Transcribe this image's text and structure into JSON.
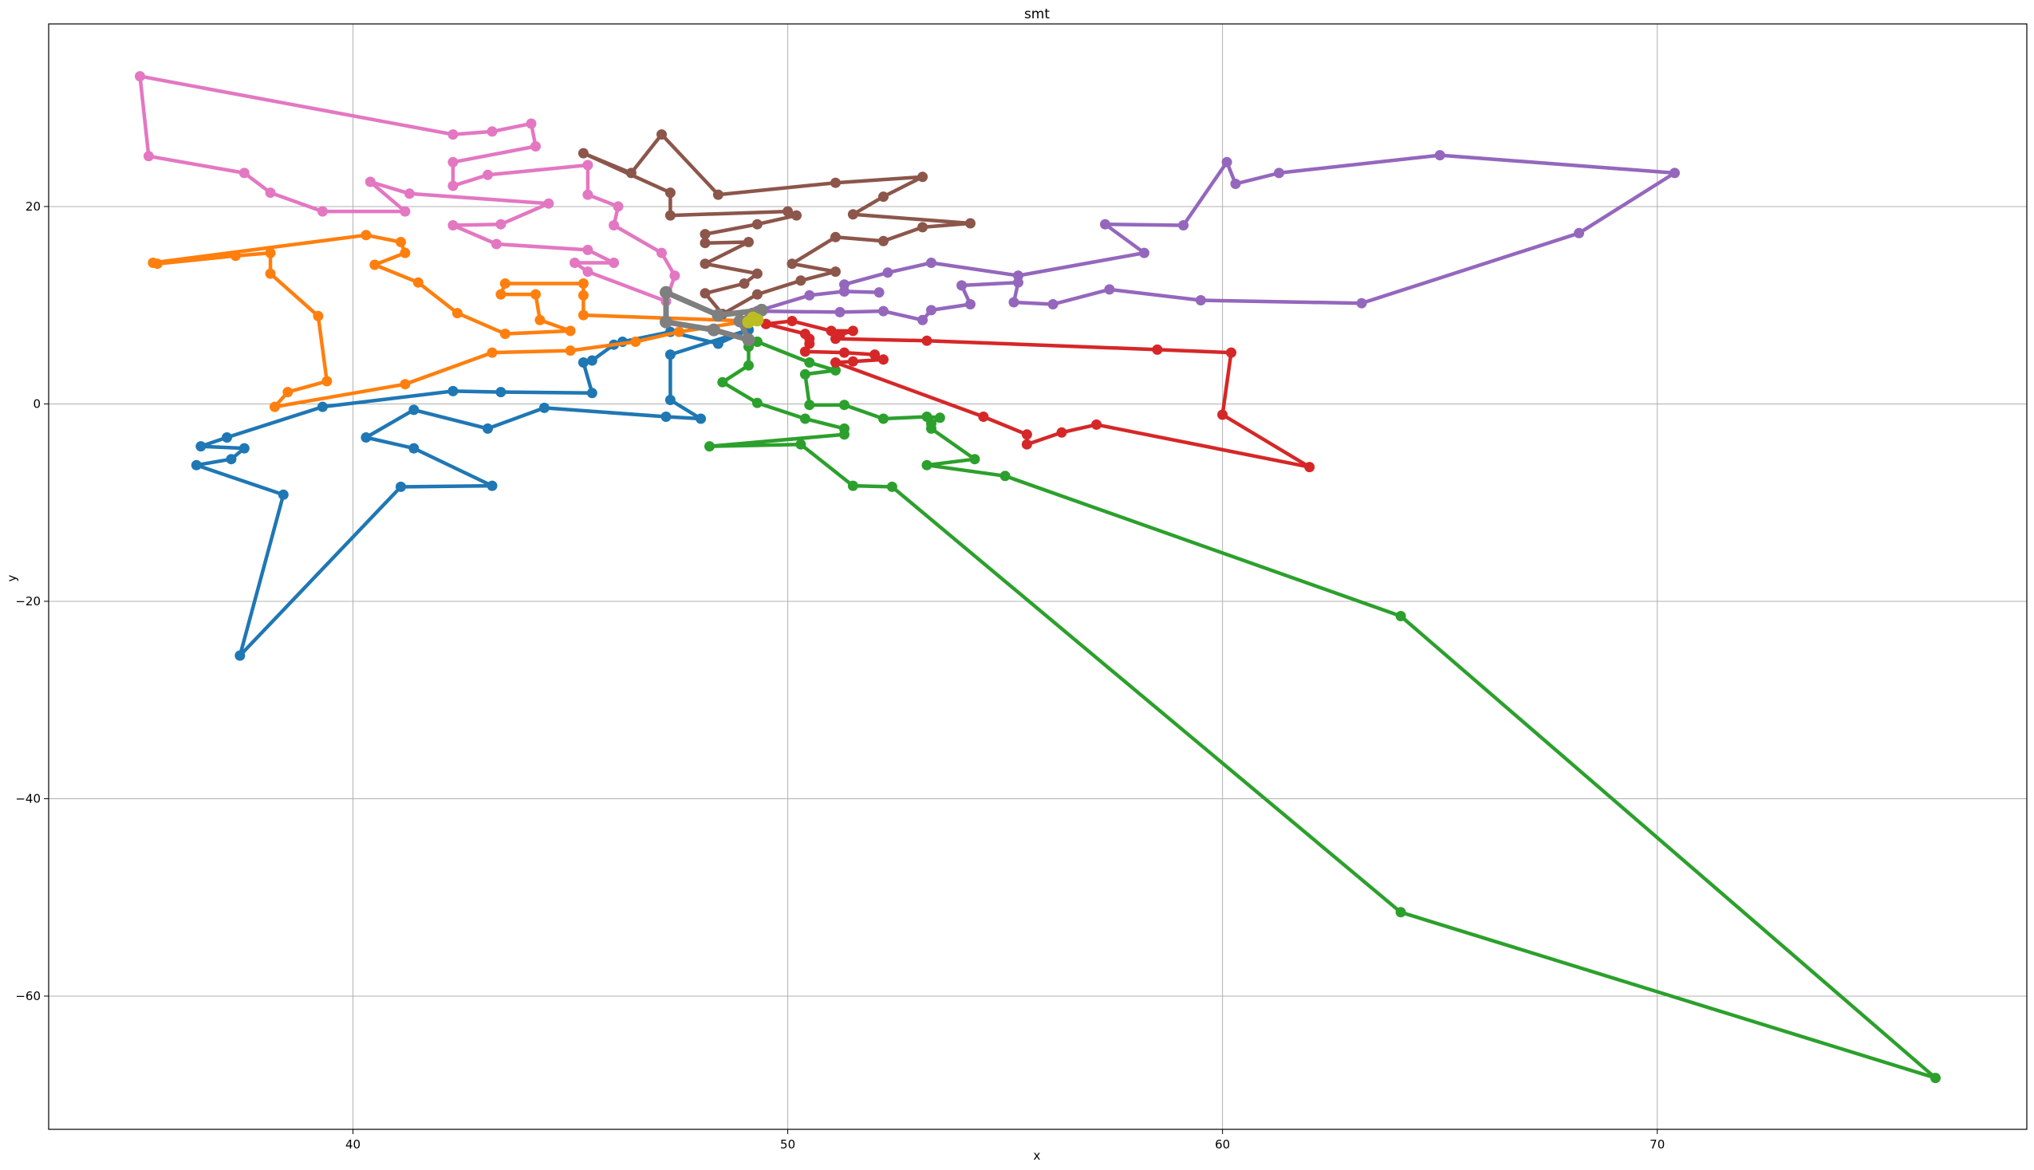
{
  "chart_data": {
    "type": "line",
    "title": "smt",
    "xlabel": "x",
    "ylabel": "y",
    "xlim": [
      33,
      78.5
    ],
    "ylim": [
      -73.5,
      38.5
    ],
    "xticks": [
      40,
      50,
      60,
      70
    ],
    "yticks": [
      -60,
      -40,
      -20,
      0,
      20
    ],
    "grid": true,
    "series": [
      {
        "color": "#1f77b4",
        "points": [
          [
            49.1,
            7.5
          ],
          [
            48.4,
            6.1
          ],
          [
            47.3,
            7.3
          ],
          [
            46.2,
            6.3
          ],
          [
            46,
            6
          ],
          [
            45.5,
            4.4
          ],
          [
            45.3,
            4.2
          ],
          [
            45.5,
            1.1
          ],
          [
            43.4,
            1.2
          ],
          [
            42.3,
            1.3
          ],
          [
            39.3,
            -0.3
          ],
          [
            37.1,
            -3.4
          ],
          [
            36.5,
            -4.3
          ],
          [
            37.5,
            -4.5
          ],
          [
            37.2,
            -5.6
          ],
          [
            36.4,
            -6.2
          ],
          [
            38.4,
            -9.2
          ],
          [
            37.4,
            -25.5
          ],
          [
            41.1,
            -8.4
          ],
          [
            43.2,
            -8.3
          ],
          [
            41.4,
            -4.5
          ],
          [
            40.3,
            -3.4
          ],
          [
            41.4,
            -0.6
          ],
          [
            43.1,
            -2.5
          ],
          [
            44.4,
            -0.4
          ],
          [
            47.2,
            -1.3
          ],
          [
            48,
            -1.5
          ],
          [
            47.3,
            0.4
          ],
          [
            47.3,
            5.0
          ],
          [
            49.1,
            7.5
          ]
        ]
      },
      {
        "color": "#ff7f0e",
        "points": [
          [
            49.1,
            8.4
          ],
          [
            47.5,
            7.3
          ],
          [
            46.5,
            6.3
          ],
          [
            45,
            5.4
          ],
          [
            43.2,
            5.2
          ],
          [
            41.2,
            2
          ],
          [
            38.2,
            -0.3
          ],
          [
            38.5,
            1.2
          ],
          [
            39.4,
            2.3
          ],
          [
            39.2,
            8.9
          ],
          [
            38.1,
            13.2
          ],
          [
            38.1,
            15.3
          ],
          [
            37.3,
            15
          ],
          [
            35.5,
            14.2
          ],
          [
            35.4,
            14.3
          ],
          [
            40.3,
            17.1
          ],
          [
            41.1,
            16.4
          ],
          [
            41.2,
            15.3
          ],
          [
            40.5,
            14.1
          ],
          [
            41.5,
            12.3
          ],
          [
            42.4,
            9.2
          ],
          [
            43.5,
            7.1
          ],
          [
            45,
            7.4
          ],
          [
            44.3,
            8.5
          ],
          [
            44.2,
            11.1
          ],
          [
            43.4,
            11.1
          ],
          [
            43.5,
            12.2
          ],
          [
            45.3,
            12.2
          ],
          [
            45.3,
            11
          ],
          [
            45.3,
            9
          ],
          [
            49.1,
            8.4
          ]
        ]
      },
      {
        "color": "#2ca02c",
        "points": [
          [
            49.3,
            6.3
          ],
          [
            49.1,
            5.8
          ],
          [
            49.1,
            3.9
          ],
          [
            48.5,
            2.2
          ],
          [
            49.3,
            0.1
          ],
          [
            50.4,
            -1.5
          ],
          [
            51.3,
            -2.5
          ],
          [
            51.3,
            -3.1
          ],
          [
            48.2,
            -4.3
          ],
          [
            50.3,
            -4.1
          ],
          [
            51.5,
            -8.3
          ],
          [
            52.4,
            -8.4
          ],
          [
            64.1,
            -51.5
          ],
          [
            76.4,
            -68.3
          ],
          [
            64.1,
            -21.5
          ],
          [
            55,
            -7.3
          ],
          [
            53.2,
            -6.2
          ],
          [
            54.3,
            -5.6
          ],
          [
            53.3,
            -2.5
          ],
          [
            53.3,
            -2.0
          ],
          [
            53.5,
            -1.4
          ],
          [
            53.2,
            -1.3
          ],
          [
            52.2,
            -1.5
          ],
          [
            51.3,
            -0.1
          ],
          [
            50.5,
            -0.1
          ],
          [
            50.4,
            3.0
          ],
          [
            51.1,
            3.4
          ],
          [
            50.5,
            4.2
          ],
          [
            49.3,
            6.3
          ]
        ]
      },
      {
        "color": "#d62728",
        "points": [
          [
            49.5,
            8.1
          ],
          [
            50.1,
            8.4
          ],
          [
            51,
            7.4
          ],
          [
            51.5,
            7.4
          ],
          [
            51.2,
            7.0
          ],
          [
            51.1,
            6.6
          ],
          [
            53.2,
            6.4
          ],
          [
            58.5,
            5.5
          ],
          [
            60.2,
            5.2
          ],
          [
            60,
            -1.1
          ],
          [
            62,
            -6.4
          ],
          [
            57.1,
            -2.1
          ],
          [
            56.3,
            -2.9
          ],
          [
            55.5,
            -4.1
          ],
          [
            55.5,
            -3.1
          ],
          [
            54.5,
            -1.3
          ],
          [
            51.1,
            4.2
          ],
          [
            51.5,
            4.3
          ],
          [
            52.2,
            4.5
          ],
          [
            52,
            5.0
          ],
          [
            51.3,
            5.2
          ],
          [
            50.4,
            5.3
          ],
          [
            50.5,
            6.1
          ],
          [
            50.5,
            6.6
          ],
          [
            50.4,
            7.1
          ],
          [
            49.5,
            8.1
          ]
        ]
      },
      {
        "color": "#9467bd",
        "points": [
          [
            49.3,
            9.4
          ],
          [
            51.2,
            9.3
          ],
          [
            52.2,
            9.4
          ],
          [
            53.1,
            8.5
          ],
          [
            53.3,
            9.5
          ],
          [
            54.2,
            10.1
          ],
          [
            54,
            12
          ],
          [
            55.3,
            12.3
          ],
          [
            55.2,
            10.3
          ],
          [
            56.1,
            10.1
          ],
          [
            57.4,
            11.6
          ],
          [
            59.5,
            10.5
          ],
          [
            63.2,
            10.2
          ],
          [
            68.2,
            17.3
          ],
          [
            70.4,
            23.4
          ],
          [
            65,
            25.2
          ],
          [
            61.3,
            23.4
          ],
          [
            60.3,
            22.3
          ],
          [
            60.1,
            24.5
          ],
          [
            59.1,
            18.1
          ],
          [
            57.3,
            18.2
          ],
          [
            58.2,
            15.3
          ],
          [
            55.3,
            13
          ],
          [
            53.3,
            14.3
          ],
          [
            52.3,
            13.3
          ],
          [
            51.3,
            12.1
          ],
          [
            51.3,
            11.4
          ],
          [
            52.1,
            11.3
          ],
          [
            51.3,
            11.4
          ],
          [
            50.5,
            11.0
          ],
          [
            49.3,
            9.4
          ]
        ]
      },
      {
        "color": "#8c564b",
        "points": [
          [
            48.5,
            9.1
          ],
          [
            49.3,
            11.1
          ],
          [
            50.3,
            12.5
          ],
          [
            51.1,
            13.4
          ],
          [
            50.1,
            14.2
          ],
          [
            51.1,
            16.9
          ],
          [
            52.2,
            16.5
          ],
          [
            53.1,
            17.9
          ],
          [
            54.2,
            18.3
          ],
          [
            51.5,
            19.2
          ],
          [
            52.2,
            21.0
          ],
          [
            53.1,
            23.0
          ],
          [
            51.1,
            22.4
          ],
          [
            48.4,
            21.2
          ],
          [
            47.1,
            27.3
          ],
          [
            46.4,
            23.4
          ],
          [
            45.3,
            25.4
          ],
          [
            47.3,
            21.4
          ],
          [
            47.3,
            19.1
          ],
          [
            50.0,
            19.5
          ],
          [
            50.2,
            19.1
          ],
          [
            49.3,
            18.2
          ],
          [
            48.1,
            17.2
          ],
          [
            48.1,
            16.3
          ],
          [
            49.1,
            16.4
          ],
          [
            48.1,
            14.2
          ],
          [
            49.3,
            13.2
          ],
          [
            49,
            12.2
          ],
          [
            48.1,
            11.2
          ],
          [
            48.5,
            9.1
          ]
        ]
      },
      {
        "color": "#e377c2",
        "points": [
          [
            47.2,
            10.4
          ],
          [
            47.4,
            13
          ],
          [
            47.1,
            15.3
          ],
          [
            46,
            18.1
          ],
          [
            46.1,
            20
          ],
          [
            45.4,
            21.2
          ],
          [
            45.4,
            24.2
          ],
          [
            43.1,
            23.2
          ],
          [
            42.3,
            22.1
          ],
          [
            42.3,
            24.5
          ],
          [
            44.2,
            26.1
          ],
          [
            44.1,
            28.4
          ],
          [
            43.2,
            27.6
          ],
          [
            42.3,
            27.3
          ],
          [
            35.1,
            33.2
          ],
          [
            35.3,
            25.1
          ],
          [
            37.5,
            23.4
          ],
          [
            38.1,
            21.4
          ],
          [
            39.3,
            19.5
          ],
          [
            41.2,
            19.5
          ],
          [
            40.4,
            22.5
          ],
          [
            41.3,
            21.3
          ],
          [
            44.5,
            20.3
          ],
          [
            43.4,
            18.2
          ],
          [
            42.3,
            18.1
          ],
          [
            43.3,
            16.2
          ],
          [
            45.4,
            15.6
          ],
          [
            46,
            14.3
          ],
          [
            45.1,
            14.3
          ],
          [
            45.4,
            13.4
          ],
          [
            47.2,
            10.4
          ]
        ]
      },
      {
        "color": "#7f7f7f",
        "points": [
          [
            49.2,
            9.1
          ],
          [
            49.4,
            9.5
          ],
          [
            48.4,
            9.0
          ],
          [
            47.2,
            11.3
          ],
          [
            47.2,
            8.3
          ],
          [
            48.3,
            7.5
          ],
          [
            49.1,
            6.5
          ],
          [
            48.9,
            8.4
          ],
          [
            49.2,
            9.1
          ]
        ],
        "thick": true
      },
      {
        "color": "#bcbd22",
        "points": [
          [
            49.2,
            8.7
          ],
          [
            49.3,
            8.5
          ],
          [
            49.1,
            8.3
          ],
          [
            49.2,
            8.7
          ]
        ],
        "thick": true
      }
    ]
  }
}
